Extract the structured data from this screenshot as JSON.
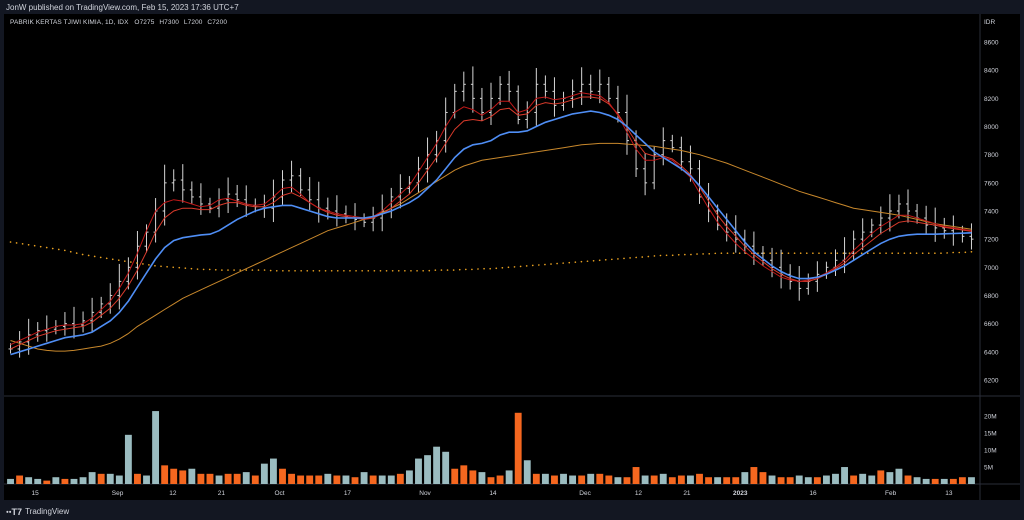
{
  "publisher": "JonW published on TradingView.com, Feb 15, 2023 17:36 UTC+7",
  "symbol": "PABRIK KERTAS TJIWI KIMIA, 1D, IDX",
  "ohlc": {
    "o_label": "O",
    "o": "7275",
    "h_label": "H",
    "h": "7300",
    "l_label": "L",
    "l": "7200",
    "c_label": "C",
    "c": "7200"
  },
  "footer_brand": "TradingView",
  "colors": {
    "background": "#000000",
    "up_volume": "#9bbcc0",
    "down_volume": "#f5671f",
    "bars": "#d6d6d6",
    "ma_blue": "#4f8ef5",
    "ma_red1": "#c21919",
    "ma_red2": "#d93a2b",
    "ma_orange": "#c8882c",
    "ma_dotted": "#e8a020"
  },
  "chart_data": {
    "type": "ohlc",
    "currency": "IDR",
    "price_axis": {
      "ticks": [
        8600,
        8400,
        8200,
        8000,
        7800,
        7600,
        7400,
        7200,
        7000,
        6800,
        6600,
        6400,
        6200
      ],
      "range": [
        6100,
        8700
      ]
    },
    "volume_axis": {
      "ticks": [
        "20M",
        "15M",
        "10M",
        "5M"
      ],
      "range": [
        0,
        23000000
      ]
    },
    "x_ticks": [
      "15",
      "Sep",
      "12",
      "21",
      "Oct",
      "17",
      "Nov",
      "14",
      "Dec",
      "12",
      "21",
      "2023",
      "16",
      "Feb",
      "13"
    ],
    "last_price": 7200,
    "closes": [
      6420,
      6470,
      6520,
      6550,
      6560,
      6580,
      6600,
      6590,
      6620,
      6680,
      6740,
      6800,
      6900,
      7000,
      7150,
      7250,
      7400,
      7600,
      7620,
      7550,
      7500,
      7450,
      7420,
      7480,
      7520,
      7480,
      7440,
      7430,
      7420,
      7500,
      7620,
      7650,
      7550,
      7480,
      7420,
      7400,
      7380,
      7360,
      7340,
      7320,
      7350,
      7400,
      7500,
      7560,
      7600,
      7700,
      7800,
      7900,
      8100,
      8250,
      8300,
      8200,
      8100,
      8200,
      8300,
      8250,
      8050,
      8100,
      8300,
      8250,
      8150,
      8200,
      8250,
      8300,
      8250,
      8300,
      8200,
      8100,
      7900,
      7700,
      7600,
      7800,
      7900,
      7850,
      7750,
      7700,
      7500,
      7400,
      7300,
      7250,
      7200,
      7150,
      7100,
      7050,
      7000,
      6950,
      6900,
      6850,
      6900,
      6950,
      7000,
      7050,
      7100,
      7200,
      7250,
      7300,
      7350,
      7400,
      7450,
      7400,
      7350,
      7300,
      7280,
      7260,
      7240,
      7220,
      7200
    ],
    "ma_blue": [
      6380,
      6400,
      6420,
      6440,
      6460,
      6480,
      6500,
      6510,
      6520,
      6540,
      6580,
      6620,
      6680,
      6760,
      6860,
      6960,
      7060,
      7140,
      7190,
      7210,
      7220,
      7230,
      7235,
      7260,
      7300,
      7340,
      7370,
      7400,
      7420,
      7430,
      7440,
      7440,
      7420,
      7400,
      7380,
      7360,
      7350,
      7350,
      7350,
      7350,
      7360,
      7380,
      7400,
      7430,
      7460,
      7500,
      7560,
      7620,
      7700,
      7780,
      7840,
      7870,
      7880,
      7900,
      7940,
      7960,
      7960,
      7970,
      8000,
      8030,
      8050,
      8070,
      8090,
      8100,
      8110,
      8100,
      8080,
      8050,
      8000,
      7940,
      7880,
      7820,
      7780,
      7740,
      7700,
      7650,
      7580,
      7500,
      7420,
      7340,
      7260,
      7180,
      7110,
      7060,
      7010,
      6970,
      6940,
      6920,
      6920,
      6930,
      6950,
      6980,
      7010,
      7050,
      7090,
      7130,
      7170,
      7200,
      7220,
      7230,
      7235,
      7235,
      7235,
      7238,
      7240,
      7242,
      7245
    ],
    "ma_red1": [
      6450,
      6480,
      6510,
      6540,
      6560,
      6580,
      6590,
      6590,
      6600,
      6640,
      6700,
      6760,
      6850,
      6960,
      7100,
      7260,
      7400,
      7460,
      7480,
      7470,
      7450,
      7430,
      7440,
      7480,
      7490,
      7470,
      7450,
      7440,
      7450,
      7500,
      7560,
      7570,
      7520,
      7460,
      7420,
      7400,
      7380,
      7370,
      7360,
      7350,
      7360,
      7400,
      7460,
      7520,
      7580,
      7680,
      7780,
      7880,
      8000,
      8100,
      8140,
      8120,
      8080,
      8120,
      8180,
      8180,
      8100,
      8120,
      8200,
      8210,
      8190,
      8200,
      8220,
      8240,
      8230,
      8220,
      8170,
      8080,
      7960,
      7840,
      7760,
      7760,
      7780,
      7760,
      7700,
      7640,
      7530,
      7420,
      7320,
      7240,
      7170,
      7110,
      7060,
      7010,
      6970,
      6930,
      6910,
      6900,
      6910,
      6930,
      6960,
      7000,
      7050,
      7120,
      7180,
      7240,
      7290,
      7330,
      7370,
      7370,
      7350,
      7330,
      7310,
      7290,
      7280,
      7270,
      7260
    ],
    "ma_red2": [
      6420,
      6450,
      6480,
      6510,
      6530,
      6550,
      6560,
      6570,
      6580,
      6610,
      6660,
      6710,
      6780,
      6870,
      6980,
      7110,
      7250,
      7350,
      7400,
      7420,
      7420,
      7410,
      7410,
      7440,
      7460,
      7460,
      7440,
      7430,
      7430,
      7460,
      7510,
      7530,
      7500,
      7460,
      7420,
      7390,
      7370,
      7360,
      7350,
      7340,
      7350,
      7380,
      7420,
      7470,
      7520,
      7600,
      7690,
      7780,
      7880,
      7980,
      8040,
      8050,
      8040,
      8070,
      8120,
      8130,
      8080,
      8090,
      8150,
      8170,
      8160,
      8170,
      8190,
      8210,
      8210,
      8200,
      8160,
      8090,
      7990,
      7890,
      7810,
      7790,
      7790,
      7770,
      7720,
      7660,
      7570,
      7470,
      7370,
      7290,
      7220,
      7150,
      7090,
      7040,
      6990,
      6950,
      6920,
      6900,
      6900,
      6920,
      6950,
      6990,
      7030,
      7090,
      7140,
      7190,
      7240,
      7280,
      7320,
      7330,
      7320,
      7310,
      7300,
      7285,
      7275,
      7265,
      7255
    ],
    "ma_orange": [
      6480,
      6460,
      6440,
      6420,
      6410,
      6405,
      6405,
      6410,
      6420,
      6430,
      6440,
      6460,
      6490,
      6530,
      6580,
      6620,
      6660,
      6700,
      6740,
      6780,
      6810,
      6840,
      6870,
      6900,
      6930,
      6960,
      6990,
      7020,
      7050,
      7080,
      7110,
      7140,
      7170,
      7200,
      7230,
      7260,
      7280,
      7300,
      7320,
      7340,
      7360,
      7390,
      7420,
      7450,
      7490,
      7530,
      7570,
      7610,
      7650,
      7690,
      7720,
      7740,
      7760,
      7770,
      7780,
      7790,
      7800,
      7810,
      7820,
      7830,
      7840,
      7850,
      7860,
      7870,
      7875,
      7880,
      7880,
      7880,
      7875,
      7870,
      7865,
      7860,
      7850,
      7840,
      7830,
      7815,
      7800,
      7780,
      7760,
      7740,
      7715,
      7690,
      7665,
      7640,
      7615,
      7590,
      7565,
      7540,
      7520,
      7500,
      7480,
      7460,
      7440,
      7420,
      7410,
      7400,
      7390,
      7380,
      7370,
      7355,
      7340,
      7325,
      7310,
      7300,
      7290,
      7280,
      7270
    ],
    "ma_dotted": [
      7180,
      7170,
      7160,
      7150,
      7140,
      7130,
      7120,
      7105,
      7090,
      7080,
      7070,
      7060,
      7050,
      7040,
      7030,
      7020,
      7010,
      7005,
      7000,
      6995,
      6990,
      6985,
      6985,
      6980,
      6980,
      6980,
      6980,
      6980,
      6980,
      6975,
      6975,
      6975,
      6975,
      6975,
      6975,
      6975,
      6975,
      6975,
      6975,
      6975,
      6975,
      6975,
      6975,
      6975,
      6975,
      6975,
      6975,
      6980,
      6980,
      6980,
      6985,
      6985,
      6990,
      6990,
      6995,
      7000,
      7005,
      7010,
      7015,
      7020,
      7025,
      7030,
      7035,
      7040,
      7045,
      7050,
      7055,
      7060,
      7065,
      7070,
      7075,
      7080,
      7085,
      7085,
      7090,
      7090,
      7095,
      7095,
      7100,
      7100,
      7100,
      7100,
      7100,
      7100,
      7100,
      7100,
      7100,
      7100,
      7100,
      7100,
      7100,
      7100,
      7100,
      7100,
      7100,
      7100,
      7100,
      7100,
      7100,
      7100,
      7100,
      7100,
      7100,
      7100,
      7105,
      7105,
      7110
    ],
    "volumes_m": [
      1.5,
      2.5,
      2,
      1.5,
      1,
      2,
      1.5,
      1.5,
      2,
      3.5,
      3,
      3,
      2.5,
      14.5,
      3,
      2.5,
      21.5,
      5.5,
      4.5,
      4,
      4.5,
      3,
      3,
      2.5,
      3,
      3,
      3.5,
      2.5,
      6,
      7.5,
      4.5,
      3,
      2.5,
      2.5,
      2.5,
      3,
      2.5,
      2.5,
      2,
      3.5,
      2.5,
      2.5,
      2.5,
      3,
      4,
      7.5,
      8.5,
      11,
      9.5,
      4.5,
      5.5,
      4,
      3.5,
      2,
      2.5,
      4,
      21,
      7,
      3,
      3,
      2.5,
      3,
      2.5,
      2.5,
      3,
      3,
      2.5,
      2,
      2,
      5,
      2.5,
      2.5,
      3,
      2,
      2.5,
      2.5,
      3,
      2,
      2,
      2,
      2,
      3.5,
      5,
      3.5,
      2.5,
      2,
      2,
      2.5,
      2,
      2,
      2.5,
      3,
      5,
      2.5,
      3,
      2.5,
      4,
      3.5,
      4.5,
      2.5,
      2,
      1.5,
      1.5,
      1.5,
      1.5,
      2,
      2
    ],
    "volume_up": [
      1,
      0,
      1,
      1,
      0,
      1,
      0,
      1,
      1,
      1,
      0,
      1,
      1,
      1,
      0,
      1,
      1,
      0,
      0,
      0,
      1,
      0,
      0,
      1,
      0,
      0,
      1,
      0,
      1,
      1,
      0,
      0,
      0,
      0,
      0,
      1,
      0,
      1,
      0,
      1,
      0,
      1,
      1,
      0,
      1,
      1,
      1,
      1,
      1,
      0,
      0,
      0,
      1,
      0,
      0,
      1,
      0,
      1,
      0,
      1,
      0,
      1,
      1,
      0,
      1,
      0,
      0,
      1,
      0,
      0,
      1,
      0,
      1,
      0,
      0,
      1,
      0,
      0,
      1,
      0,
      0,
      1,
      0,
      0,
      1,
      0,
      0,
      1,
      1,
      0,
      1,
      1,
      1,
      0,
      1,
      1,
      0,
      1,
      1,
      0,
      1,
      1,
      0,
      1,
      0,
      0,
      1
    ]
  }
}
